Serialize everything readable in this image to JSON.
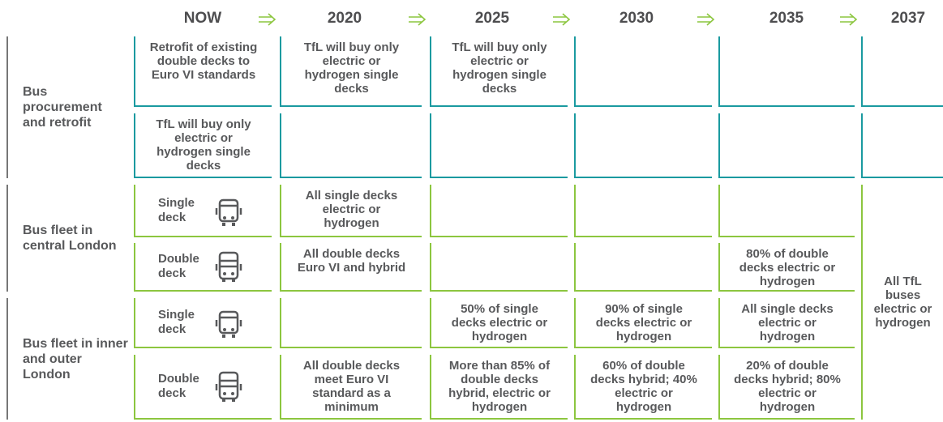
{
  "headers": [
    "NOW",
    "2020",
    "2025",
    "2030",
    "2035",
    "2037"
  ],
  "sections": [
    {
      "label": "Bus procurement and retrofit",
      "rows": [
        {
          "cells": [
            "Retrofit of existing double decks to Euro VI standards",
            "TfL will buy only electric or hydrogen single decks",
            "TfL will buy only electric or hydrogen single decks",
            null,
            null,
            null
          ]
        },
        {
          "cells": [
            "TfL will buy only electric or hydrogen single decks",
            null,
            null,
            null,
            null,
            null
          ]
        }
      ]
    },
    {
      "label": "Bus fleet in central London",
      "rows": [
        {
          "type": "Single deck",
          "cells": [
            "All single decks electric or hydrogen",
            null,
            null,
            null
          ]
        },
        {
          "type": "Double deck",
          "cells": [
            "All double decks Euro VI and hybrid",
            null,
            null,
            "80% of double decks electric or hydrogen"
          ]
        }
      ]
    },
    {
      "label": "Bus fleet in inner and outer London",
      "rows": [
        {
          "type": "Single deck",
          "cells": [
            null,
            "50% of single decks electric or hydrogen",
            "90% of single decks electric or hydrogen",
            "All single decks electric or hydrogen"
          ]
        },
        {
          "type": "Double deck",
          "cells": [
            "All double decks meet Euro VI standard as a minimum",
            "More than 85% of double decks hybrid, electric or hydrogen",
            "60% of double decks hybrid; 40% electric or hydrogen",
            "20% of double decks hybrid; 80% electric or hydrogen"
          ]
        }
      ]
    }
  ],
  "final": "All TfL buses electric or hydrogen"
}
